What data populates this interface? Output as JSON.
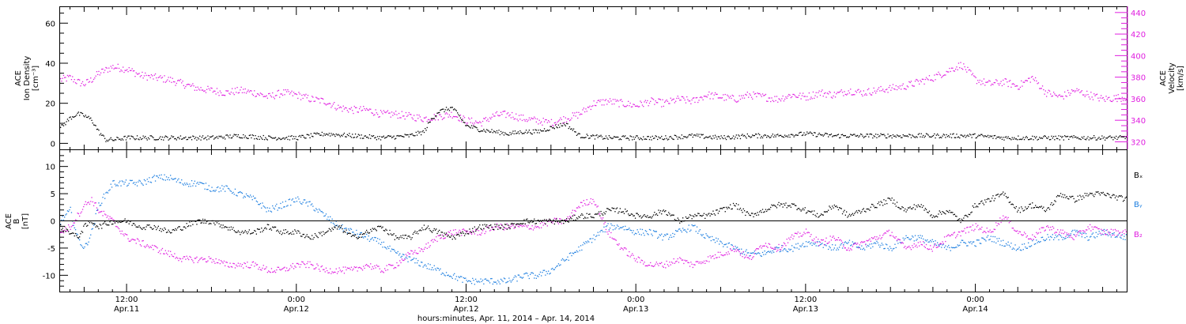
{
  "colors": {
    "black": "#000000",
    "magenta": "#e01ee0",
    "blue": "#1e7fe0"
  },
  "x_axis": {
    "title": "hours:minutes, Apr. 11, 2014 – Apr. 14, 2014",
    "ticks": [
      {
        "time": "12:00",
        "date": "Apr.11",
        "hour": 12
      },
      {
        "time": "0:00",
        "date": "Apr.12",
        "hour": 24
      },
      {
        "time": "12:00",
        "date": "Apr.12",
        "hour": 36
      },
      {
        "time": "0:00",
        "date": "Apr.13",
        "hour": 48
      },
      {
        "time": "12:00",
        "date": "Apr.13",
        "hour": 60
      },
      {
        "time": "0:00",
        "date": "Apr.14",
        "hour": 72
      }
    ],
    "range_hours": [
      7.3,
      82.7
    ]
  },
  "chart_data": [
    {
      "type": "scatter",
      "panel": "top",
      "ylabel_lines": [
        "ACE",
        "Ion Density",
        "[cm⁻³]"
      ],
      "ylabel_right_lines": [
        "ACE",
        "Velocity",
        "[km/s]"
      ],
      "ylim_left": [
        -3,
        68
      ],
      "yticks_left": [
        0,
        20,
        40,
        60
      ],
      "ylim_right": [
        313,
        445
      ],
      "yticks_right": [
        320,
        340,
        360,
        380,
        400,
        420,
        440
      ],
      "series": [
        {
          "color": "#000000",
          "axis": "left",
          "x": [
            7.3,
            8.0,
            8.5,
            9.0,
            9.5,
            10.0,
            10.5,
            11.0,
            12.0,
            14.0,
            16.0,
            18.0,
            20.0,
            22.0,
            24.0,
            26.0,
            28.0,
            30.0,
            32.0,
            33.0,
            33.5,
            34.0,
            35.0,
            36.0,
            37.0,
            38.0,
            39.0,
            40.0,
            41.0,
            42.0,
            43.0,
            44.0,
            46.0,
            48.0,
            50.0,
            52.0,
            54.0,
            56.0,
            58.0,
            60.0,
            62.0,
            64.0,
            66.0,
            68.0,
            70.0,
            72.0,
            74.0,
            76.0,
            78.0,
            80.0,
            82.7
          ],
          "y": [
            8,
            13,
            15,
            14,
            12,
            6,
            2,
            2,
            3,
            3,
            3,
            3,
            4,
            3,
            3,
            5,
            4,
            3,
            4,
            6,
            12,
            16,
            18,
            9,
            7,
            6,
            5,
            6,
            6,
            8,
            10,
            4,
            3,
            3,
            3,
            4,
            3,
            4,
            4,
            5,
            4,
            4,
            4,
            4,
            4,
            4,
            3,
            3,
            3,
            3,
            3
          ]
        },
        {
          "color": "#e01ee0",
          "axis": "right",
          "x": [
            7.3,
            8.0,
            8.5,
            9.0,
            9.5,
            10.0,
            11.0,
            12.0,
            13.0,
            14.0,
            15.0,
            16.0,
            17.0,
            18.0,
            19.0,
            20.0,
            21.0,
            22.0,
            23.0,
            24.0,
            25.0,
            26.0,
            27.0,
            28.0,
            29.0,
            30.0,
            31.0,
            32.0,
            33.0,
            34.0,
            35.0,
            36.0,
            37.0,
            38.0,
            39.0,
            40.0,
            41.0,
            42.0,
            43.0,
            44.0,
            45.0,
            46.0,
            47.0,
            48.0,
            49.0,
            50.0,
            51.0,
            52.0,
            53.0,
            54.0,
            55.0,
            56.0,
            57.0,
            58.0,
            59.0,
            60.0,
            61.0,
            62.0,
            63.0,
            64.0,
            65.0,
            66.0,
            67.0,
            68.0,
            69.0,
            70.0,
            71.0,
            72.0,
            73.0,
            74.0,
            75.0,
            76.0,
            77.0,
            78.0,
            79.0,
            80.0,
            81.0,
            82.7
          ],
          "y": [
            378,
            380,
            376,
            374,
            378,
            384,
            390,
            388,
            382,
            380,
            378,
            374,
            370,
            368,
            366,
            368,
            366,
            362,
            366,
            364,
            360,
            358,
            352,
            350,
            350,
            346,
            346,
            344,
            342,
            344,
            346,
            340,
            338,
            345,
            346,
            342,
            340,
            338,
            342,
            346,
            356,
            358,
            356,
            354,
            358,
            356,
            360,
            358,
            364,
            362,
            360,
            364,
            362,
            360,
            364,
            362,
            366,
            364,
            368,
            366,
            368,
            370,
            372,
            376,
            380,
            386,
            392,
            378,
            374,
            376,
            372,
            380,
            366,
            362,
            368,
            364,
            360,
            362
          ]
        }
      ]
    },
    {
      "type": "scatter",
      "panel": "bottom",
      "ylabel_lines": [
        "ACE",
        "B",
        "[nT]"
      ],
      "ylim": [
        -13,
        13
      ],
      "yticks": [
        -10,
        -5,
        0,
        5,
        10
      ],
      "legend": [
        "Bₓ",
        "Bᵧ",
        "B₂"
      ],
      "series": [
        {
          "color": "#000000",
          "x": [
            7.3,
            8.0,
            8.5,
            9.0,
            9.5,
            10.0,
            11.0,
            12.0,
            13.0,
            14.0,
            15.0,
            16.0,
            17.0,
            18.0,
            19.0,
            20.0,
            21.0,
            22.0,
            23.0,
            24.0,
            25.0,
            26.0,
            27.0,
            28.0,
            29.0,
            30.0,
            31.0,
            32.0,
            33.0,
            34.0,
            35.0,
            36.0,
            37.0,
            38.0,
            39.0,
            40.0,
            41.0,
            42.0,
            43.0,
            44.0,
            45.0,
            46.0,
            47.0,
            48.0,
            49.0,
            50.0,
            51.0,
            52.0,
            53.0,
            54.0,
            55.0,
            56.0,
            57.0,
            58.0,
            59.0,
            60.0,
            61.0,
            62.0,
            63.0,
            64.0,
            65.0,
            66.0,
            67.0,
            68.0,
            69.0,
            70.0,
            71.0,
            72.0,
            73.0,
            74.0,
            75.0,
            76.0,
            77.0,
            78.0,
            79.0,
            80.0,
            81.0,
            82.7
          ],
          "y": [
            -1,
            -2,
            -3,
            -1,
            0,
            -1,
            0,
            0,
            -1,
            -1,
            -2,
            -1,
            0,
            0,
            -1,
            -2,
            -2,
            -1,
            -2,
            -2,
            -3,
            -2,
            -1,
            -3,
            -2,
            -1,
            -3,
            -3,
            -1,
            -2,
            -3,
            -2,
            -1,
            -1,
            -1,
            0,
            0,
            0,
            0,
            1,
            1,
            2,
            2,
            1,
            1,
            2,
            0,
            1,
            1,
            2,
            3,
            1,
            2,
            3,
            3,
            2,
            1,
            3,
            1,
            2,
            3,
            4,
            2,
            3,
            1,
            2,
            0,
            3,
            4,
            5,
            2,
            3,
            2,
            5,
            4,
            5,
            5,
            4
          ]
        },
        {
          "color": "#1e7fe0",
          "x": [
            7.3,
            8.0,
            8.5,
            9.0,
            9.5,
            10.0,
            11.0,
            12.0,
            13.0,
            14.0,
            15.0,
            16.0,
            17.0,
            18.0,
            19.0,
            20.0,
            21.0,
            22.0,
            23.0,
            24.0,
            25.0,
            26.0,
            27.0,
            28.0,
            29.0,
            30.0,
            31.0,
            32.0,
            33.0,
            34.0,
            35.0,
            36.0,
            37.0,
            38.0,
            39.0,
            40.0,
            41.0,
            42.0,
            43.0,
            44.0,
            45.0,
            46.0,
            47.0,
            48.0,
            49.0,
            50.0,
            51.0,
            52.0,
            53.0,
            54.0,
            55.0,
            56.0,
            57.0,
            58.0,
            59.0,
            60.0,
            61.0,
            62.0,
            63.0,
            64.0,
            65.0,
            66.0,
            67.0,
            68.0,
            69.0,
            70.0,
            71.0,
            72.0,
            73.0,
            74.0,
            75.0,
            76.0,
            77.0,
            78.0,
            79.0,
            80.0,
            81.0,
            82.7
          ],
          "y": [
            0,
            2,
            -3,
            -5,
            -2,
            3,
            7,
            7,
            7,
            8,
            8,
            7,
            7,
            6,
            6,
            5,
            4,
            2,
            3,
            4,
            3,
            1,
            -1,
            -2,
            -3,
            -4,
            -6,
            -7,
            -8,
            -9,
            -10,
            -11,
            -11,
            -11,
            -11,
            -10,
            -10,
            -9,
            -7,
            -5,
            -3,
            -1,
            -1,
            -2,
            -2,
            -3,
            -2,
            -1,
            -3,
            -4,
            -5,
            -6,
            -6,
            -5,
            -5,
            -4,
            -4,
            -5,
            -4,
            -5,
            -4,
            -5,
            -3,
            -3,
            -4,
            -5,
            -4,
            -4,
            -3,
            -4,
            -5,
            -4,
            -3,
            -3,
            -2,
            -3,
            -2,
            -3
          ]
        },
        {
          "color": "#e01ee0",
          "x": [
            7.3,
            8.0,
            8.5,
            9.0,
            9.5,
            10.0,
            11.0,
            12.0,
            13.0,
            14.0,
            15.0,
            16.0,
            17.0,
            18.0,
            19.0,
            20.0,
            21.0,
            22.0,
            23.0,
            24.0,
            25.0,
            26.0,
            27.0,
            28.0,
            29.0,
            30.0,
            31.0,
            32.0,
            33.0,
            34.0,
            35.0,
            36.0,
            37.0,
            38.0,
            39.0,
            40.0,
            41.0,
            42.0,
            43.0,
            44.0,
            45.0,
            46.0,
            47.0,
            48.0,
            49.0,
            50.0,
            51.0,
            52.0,
            53.0,
            54.0,
            55.0,
            56.0,
            57.0,
            58.0,
            59.0,
            60.0,
            61.0,
            62.0,
            63.0,
            64.0,
            65.0,
            66.0,
            67.0,
            68.0,
            69.0,
            70.0,
            71.0,
            72.0,
            73.0,
            74.0,
            75.0,
            76.0,
            77.0,
            78.0,
            79.0,
            80.0,
            81.0,
            82.7
          ],
          "y": [
            -2,
            -1,
            1,
            3,
            4,
            2,
            0,
            -3,
            -4,
            -5,
            -6,
            -7,
            -7,
            -7,
            -8,
            -8,
            -8,
            -9,
            -9,
            -8,
            -8,
            -9,
            -9,
            -9,
            -8,
            -9,
            -8,
            -6,
            -5,
            -3,
            -2,
            -2,
            -2,
            -1,
            -1,
            -1,
            -1,
            0,
            0,
            3,
            4,
            -2,
            -5,
            -7,
            -8,
            -8,
            -7,
            -8,
            -7,
            -6,
            -5,
            -7,
            -4,
            -5,
            -3,
            -2,
            -4,
            -3,
            -5,
            -4,
            -3,
            -2,
            -5,
            -4,
            -5,
            -3,
            -2,
            -1,
            -2,
            1,
            -2,
            -3,
            -1,
            -2,
            -3,
            -1,
            -2,
            -2
          ]
        }
      ]
    }
  ]
}
